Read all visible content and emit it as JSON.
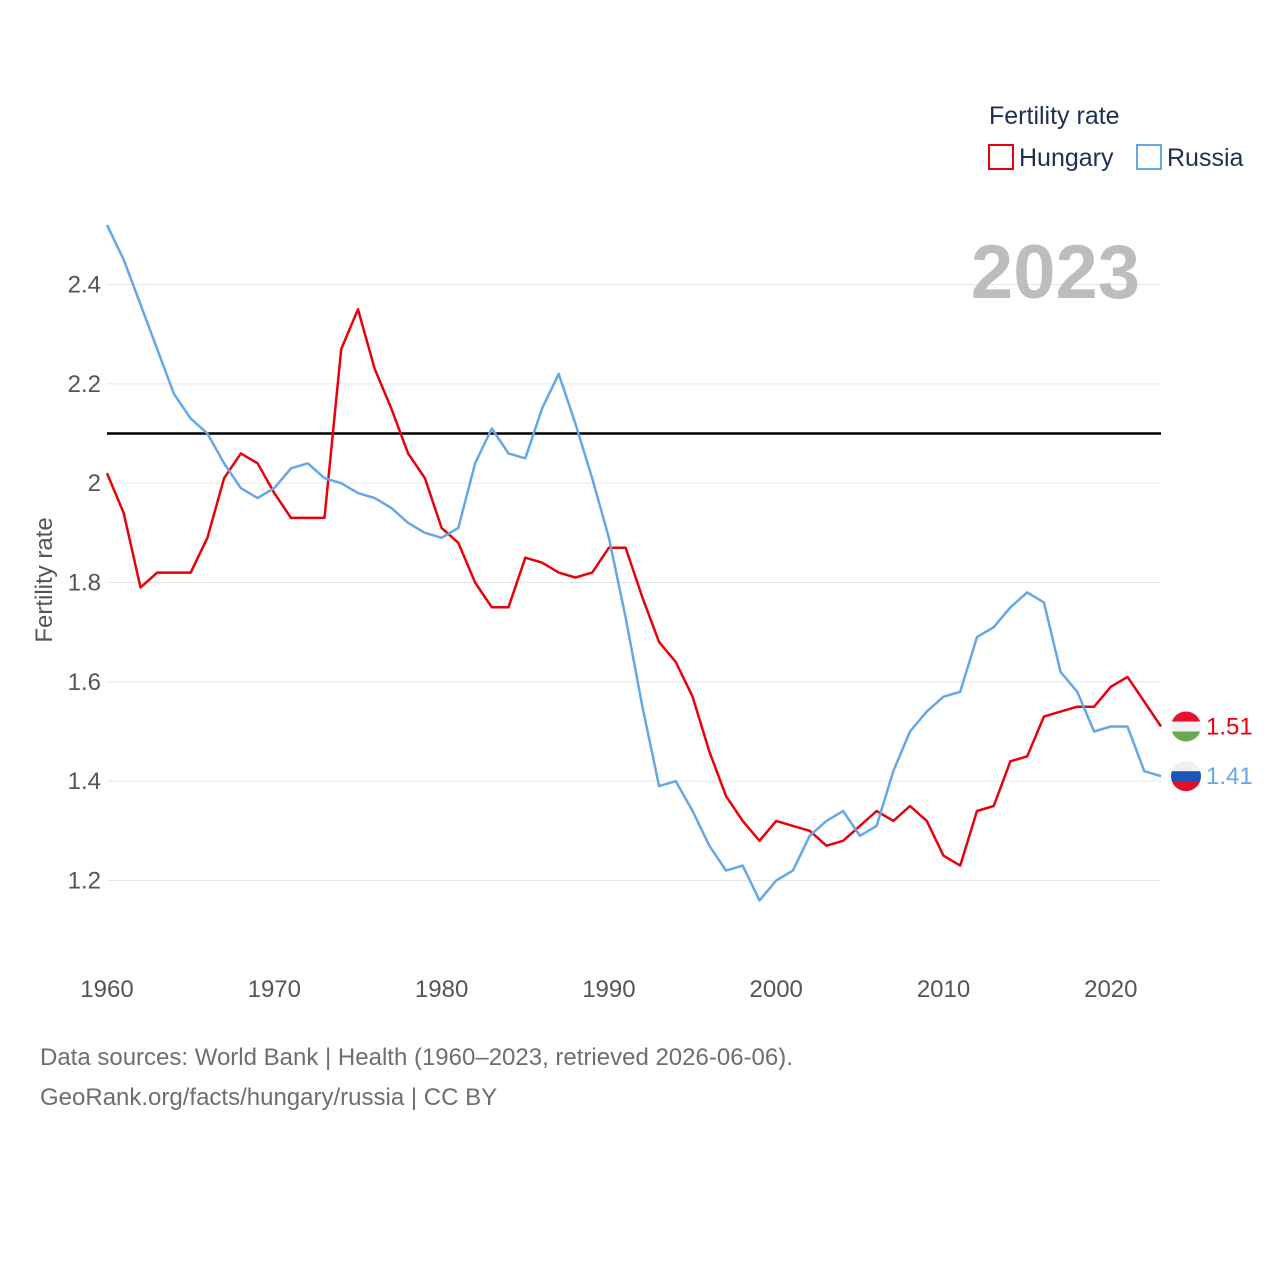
{
  "chart_data": {
    "type": "line",
    "title": "",
    "current_year": "2023",
    "xlabel": "",
    "ylabel": "Fertility rate",
    "xlim": [
      1960,
      2023
    ],
    "ylim": [
      1.05,
      2.55
    ],
    "x_ticks": [
      "1960",
      "1970",
      "1980",
      "1990",
      "2000",
      "2010",
      "2020"
    ],
    "y_ticks": [
      "1.2",
      "1.4",
      "1.6",
      "1.8",
      "2",
      "2.2",
      "2.4"
    ],
    "reference_line": 2.1,
    "grid": true,
    "legend": {
      "title": "Fertility rate",
      "placement": "top-right",
      "items": [
        "Hungary",
        "Russia"
      ]
    },
    "x": [
      1960,
      1961,
      1962,
      1963,
      1964,
      1965,
      1966,
      1967,
      1968,
      1969,
      1970,
      1971,
      1972,
      1973,
      1974,
      1975,
      1976,
      1977,
      1978,
      1979,
      1980,
      1981,
      1982,
      1983,
      1984,
      1985,
      1986,
      1987,
      1988,
      1989,
      1990,
      1991,
      1992,
      1993,
      1994,
      1995,
      1996,
      1997,
      1998,
      1999,
      2000,
      2001,
      2002,
      2003,
      2004,
      2005,
      2006,
      2007,
      2008,
      2009,
      2010,
      2011,
      2012,
      2013,
      2014,
      2015,
      2016,
      2017,
      2018,
      2019,
      2020,
      2021,
      2022,
      2023
    ],
    "series": [
      {
        "name": "Hungary",
        "color": "#e8000b",
        "end_label": "1.51",
        "values": [
          2.02,
          1.94,
          1.79,
          1.82,
          1.82,
          1.82,
          1.89,
          2.01,
          2.06,
          2.04,
          1.98,
          1.93,
          1.93,
          1.93,
          2.27,
          2.35,
          2.23,
          2.15,
          2.06,
          2.01,
          1.91,
          1.88,
          1.8,
          1.75,
          1.75,
          1.85,
          1.84,
          1.82,
          1.81,
          1.82,
          1.87,
          1.87,
          1.77,
          1.68,
          1.64,
          1.57,
          1.46,
          1.37,
          1.32,
          1.28,
          1.32,
          1.31,
          1.3,
          1.27,
          1.28,
          1.31,
          1.34,
          1.32,
          1.35,
          1.32,
          1.25,
          1.23,
          1.34,
          1.35,
          1.44,
          1.45,
          1.53,
          1.54,
          1.55,
          1.55,
          1.59,
          1.61,
          1.56,
          1.51
        ]
      },
      {
        "name": "Russia",
        "color": "#64a8e6",
        "end_label": "1.41",
        "values": [
          2.52,
          2.45,
          2.36,
          2.27,
          2.18,
          2.13,
          2.1,
          2.04,
          1.99,
          1.97,
          1.99,
          2.03,
          2.04,
          2.01,
          2.0,
          1.98,
          1.97,
          1.95,
          1.92,
          1.9,
          1.89,
          1.91,
          2.04,
          2.11,
          2.06,
          2.05,
          2.15,
          2.22,
          2.12,
          2.01,
          1.89,
          1.73,
          1.55,
          1.39,
          1.4,
          1.34,
          1.27,
          1.22,
          1.23,
          1.16,
          1.2,
          1.22,
          1.29,
          1.32,
          1.34,
          1.29,
          1.31,
          1.42,
          1.5,
          1.54,
          1.57,
          1.58,
          1.69,
          1.71,
          1.75,
          1.78,
          1.76,
          1.62,
          1.58,
          1.5,
          1.51,
          1.51,
          1.42,
          1.41
        ]
      }
    ]
  },
  "footer": {
    "sources": "Data sources: World Bank | Health (1960–2023, retrieved 2026-06-06).",
    "credit": "GeoRank.org/facts/hungary/russia | CC BY"
  }
}
